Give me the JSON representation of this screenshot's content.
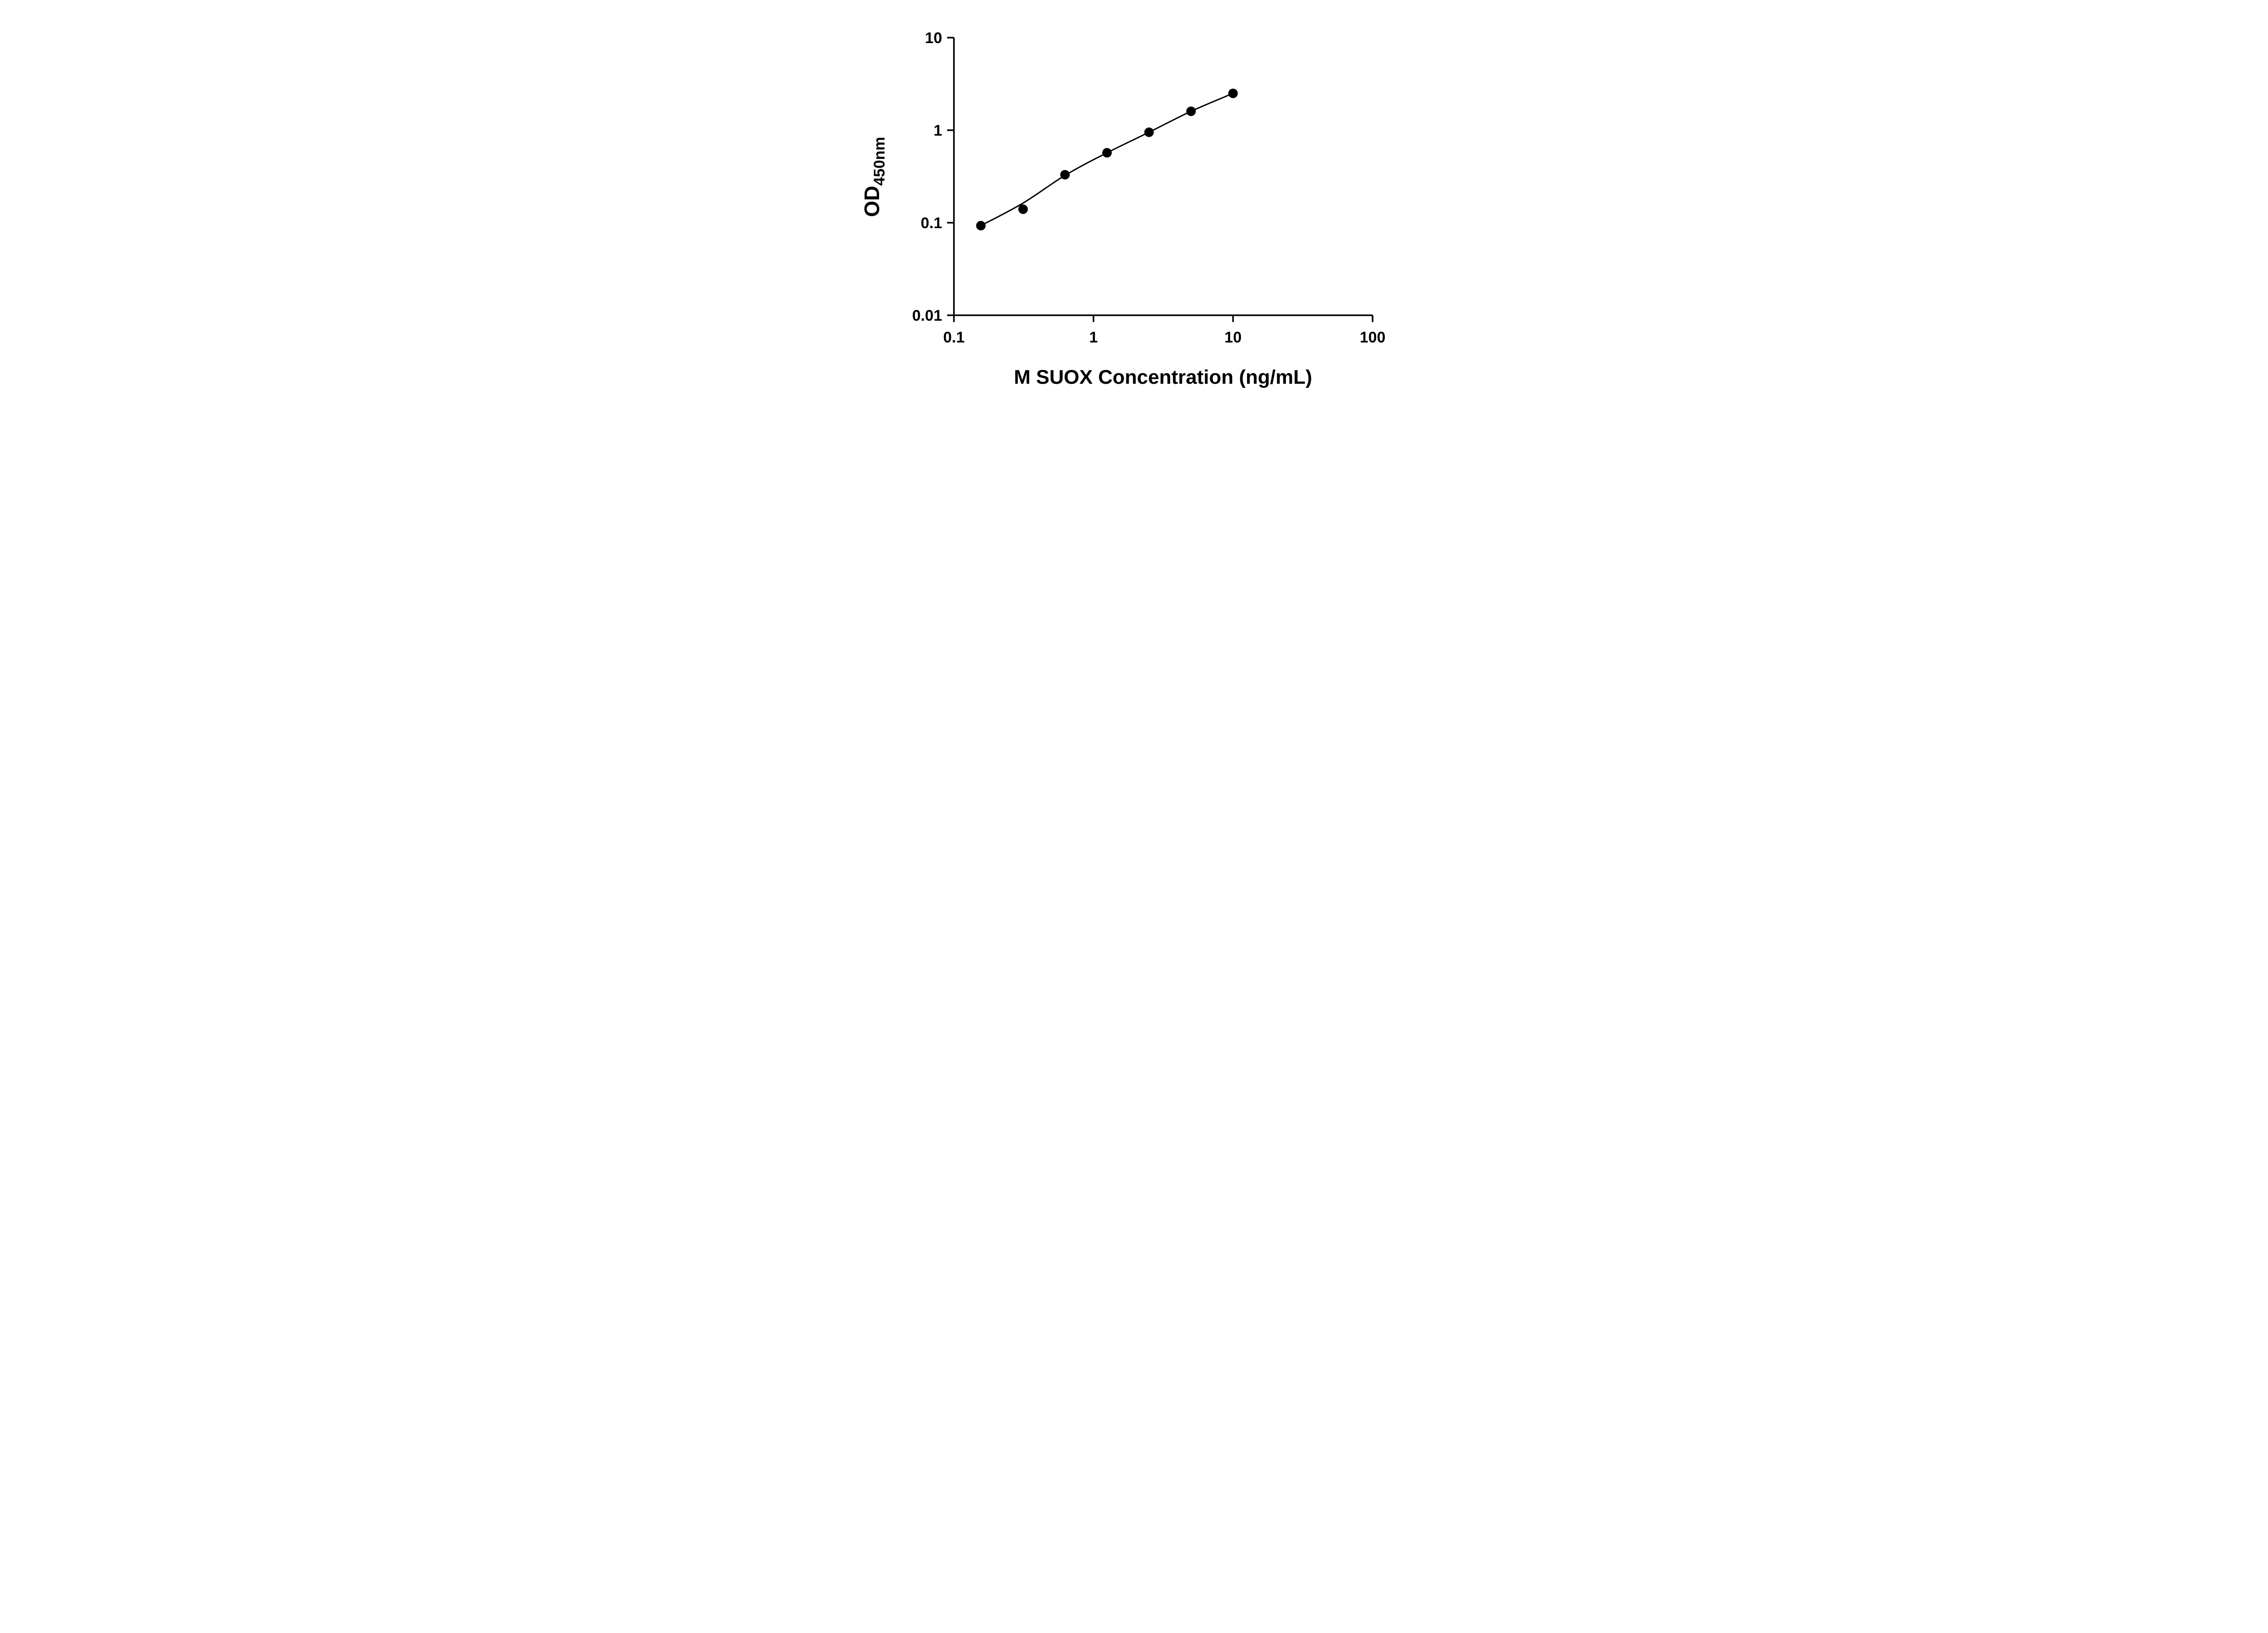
{
  "chart_data": {
    "type": "scatter",
    "title": "",
    "xlabel": "M SUOX Concentration (ng/mL)",
    "ylabel": "OD",
    "ylabel_sub": "450nm",
    "x_scale": "log",
    "y_scale": "log",
    "xlim": [
      0.1,
      100
    ],
    "ylim": [
      0.01,
      10
    ],
    "x_ticks": [
      0.1,
      1,
      10,
      100
    ],
    "x_tick_labels": [
      "0.1",
      "1",
      "10",
      "100"
    ],
    "y_ticks": [
      0.01,
      0.1,
      1,
      10
    ],
    "y_tick_labels": [
      "0.01",
      "0.1",
      "1",
      "10"
    ],
    "grid": false,
    "legend": null,
    "marker_color": "#000000",
    "line_color": "#000000",
    "background_color": "#ffffff",
    "points": [
      {
        "x": 0.156,
        "y": 0.093
      },
      {
        "x": 0.313,
        "y": 0.14
      },
      {
        "x": 0.625,
        "y": 0.33
      },
      {
        "x": 1.25,
        "y": 0.57
      },
      {
        "x": 2.5,
        "y": 0.95
      },
      {
        "x": 5,
        "y": 1.6
      },
      {
        "x": 10,
        "y": 2.5
      }
    ],
    "fit_curve": [
      {
        "x": 0.156,
        "y": 0.093
      },
      {
        "x": 0.313,
        "y": 0.163
      },
      {
        "x": 0.625,
        "y": 0.325
      },
      {
        "x": 1.25,
        "y": 0.57
      },
      {
        "x": 2.5,
        "y": 0.95
      },
      {
        "x": 5,
        "y": 1.6
      },
      {
        "x": 10,
        "y": 2.5
      }
    ]
  }
}
